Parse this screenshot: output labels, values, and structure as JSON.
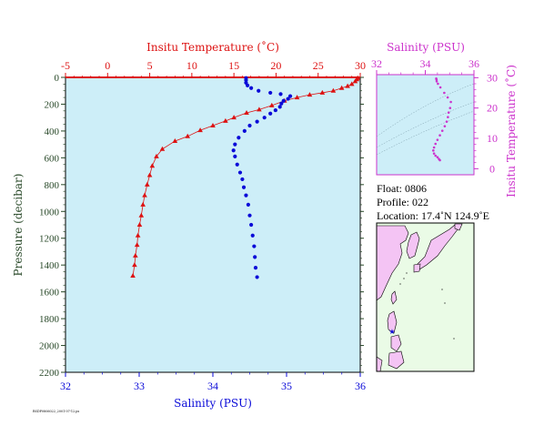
{
  "colors": {
    "temperature": "#dd1111",
    "salinity_main": "#0a0ad8",
    "salinity_inset": "#cc33cc",
    "plot_bg": "#cdeef8",
    "map_land": "#f4c4f4",
    "map_sea": "#eafbe6",
    "axis_label": "#2a4a2a"
  },
  "chart_data": [
    {
      "type": "scatter",
      "title": "",
      "top_axis": {
        "label": "Insitu Temperature (˚C)",
        "range": [
          -5,
          30
        ],
        "ticks": [
          -5,
          0,
          5,
          10,
          15,
          20,
          25,
          30
        ]
      },
      "bottom_axis": {
        "label": "Salinity (PSU)",
        "range": [
          32,
          36
        ],
        "ticks": [
          32,
          33,
          34,
          35,
          36
        ]
      },
      "y_axis": {
        "label": "Pressure (decibar)",
        "range": [
          0,
          2200
        ],
        "inverted": true,
        "ticks": [
          0,
          200,
          400,
          600,
          800,
          1000,
          1200,
          1400,
          1600,
          1800,
          2000,
          2200
        ]
      },
      "series": [
        {
          "name": "Insitu Temperature (˚C)",
          "marker": "triangle",
          "x_axis": "top",
          "points": [
            [
              29.7,
              5
            ],
            [
              29.6,
              15
            ],
            [
              29.4,
              30
            ],
            [
              29.0,
              50
            ],
            [
              28.5,
              65
            ],
            [
              27.8,
              80
            ],
            [
              26.8,
              100
            ],
            [
              25.5,
              115
            ],
            [
              24.0,
              130
            ],
            [
              22.5,
              150
            ],
            [
              21.0,
              175
            ],
            [
              19.5,
              210
            ],
            [
              18.0,
              240
            ],
            [
              16.5,
              265
            ],
            [
              15.0,
              300
            ],
            [
              14.0,
              325
            ],
            [
              12.5,
              360
            ],
            [
              11.0,
              395
            ],
            [
              9.5,
              440
            ],
            [
              8.0,
              475
            ],
            [
              6.5,
              535
            ],
            [
              5.8,
              590
            ],
            [
              5.3,
              660
            ],
            [
              5.0,
              730
            ],
            [
              4.7,
              800
            ],
            [
              4.4,
              880
            ],
            [
              4.2,
              950
            ],
            [
              4.0,
              1030
            ],
            [
              3.8,
              1100
            ],
            [
              3.6,
              1180
            ],
            [
              3.5,
              1250
            ],
            [
              3.3,
              1330
            ],
            [
              3.2,
              1400
            ],
            [
              3.0,
              1480
            ]
          ]
        },
        {
          "name": "Salinity (PSU)",
          "marker": "circle",
          "x_axis": "bottom",
          "points": [
            [
              34.45,
              5
            ],
            [
              34.45,
              20
            ],
            [
              34.45,
              40
            ],
            [
              34.47,
              60
            ],
            [
              34.52,
              80
            ],
            [
              34.62,
              100
            ],
            [
              34.78,
              115
            ],
            [
              34.92,
              125
            ],
            [
              35.05,
              140
            ],
            [
              35.02,
              160
            ],
            [
              34.96,
              175
            ],
            [
              34.93,
              195
            ],
            [
              34.91,
              220
            ],
            [
              34.85,
              245
            ],
            [
              34.78,
              270
            ],
            [
              34.7,
              300
            ],
            [
              34.6,
              330
            ],
            [
              34.5,
              360
            ],
            [
              34.43,
              400
            ],
            [
              34.35,
              450
            ],
            [
              34.3,
              500
            ],
            [
              34.28,
              545
            ],
            [
              34.3,
              590
            ],
            [
              34.33,
              650
            ],
            [
              34.37,
              710
            ],
            [
              34.4,
              760
            ],
            [
              34.42,
              820
            ],
            [
              34.45,
              880
            ],
            [
              34.48,
              950
            ],
            [
              34.5,
              1030
            ],
            [
              34.52,
              1100
            ],
            [
              34.54,
              1180
            ],
            [
              34.56,
              1260
            ],
            [
              34.57,
              1340
            ],
            [
              34.58,
              1420
            ],
            [
              34.6,
              1490
            ]
          ]
        }
      ]
    },
    {
      "type": "scatter",
      "title": "",
      "x_axis": {
        "label": "Salinity (PSU)",
        "range": [
          32,
          36
        ],
        "ticks": [
          32,
          34,
          36
        ]
      },
      "y_axis": {
        "label": "Insitu Temperature (˚C)",
        "range": [
          -2,
          31
        ],
        "ticks": [
          0,
          10,
          20,
          30
        ],
        "side": "right"
      },
      "series": [
        {
          "name": "T-S profile",
          "marker": "dot",
          "points": [
            [
              34.45,
              29.7
            ],
            [
              34.46,
              29.4
            ],
            [
              34.47,
              28.8
            ],
            [
              34.52,
              28.0
            ],
            [
              34.62,
              26.8
            ],
            [
              34.78,
              25.0
            ],
            [
              34.92,
              23.5
            ],
            [
              35.05,
              22.0
            ],
            [
              35.02,
              20.0
            ],
            [
              34.96,
              18.5
            ],
            [
              34.93,
              17.0
            ],
            [
              34.88,
              15.5
            ],
            [
              34.8,
              14.0
            ],
            [
              34.7,
              12.5
            ],
            [
              34.6,
              11.0
            ],
            [
              34.5,
              9.5
            ],
            [
              34.42,
              8.2
            ],
            [
              34.36,
              7.0
            ],
            [
              34.33,
              6.0
            ],
            [
              34.36,
              5.0
            ],
            [
              34.42,
              4.3
            ],
            [
              34.5,
              3.8
            ],
            [
              34.56,
              3.2
            ],
            [
              34.6,
              2.8
            ]
          ]
        }
      ]
    }
  ],
  "float_info": {
    "float_line": "Float:  0806",
    "profile_line": "Profile:  022",
    "location_line": "Location:  17.4˚N  124.9˚E"
  },
  "location_marker": "★",
  "footer_text": "RSDP0806022_2001-07-12.ps"
}
